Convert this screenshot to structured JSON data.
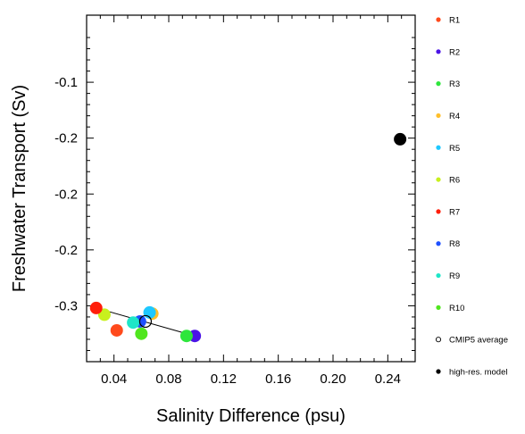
{
  "chart_data": {
    "type": "scatter",
    "xlabel": "Salinity Difference (psu)",
    "ylabel": "Freshwater Transport (Sv)",
    "xlim": [
      0.02,
      0.26
    ],
    "ylim": [
      -0.35,
      -0.04
    ],
    "x_ticks": [
      {
        "value": 0.04,
        "label": "0.04"
      },
      {
        "value": 0.08,
        "label": "0.08"
      },
      {
        "value": 0.12,
        "label": "0.12"
      },
      {
        "value": 0.16,
        "label": "0.16"
      },
      {
        "value": 0.2,
        "label": "0.20"
      },
      {
        "value": 0.24,
        "label": "0.24"
      }
    ],
    "y_ticks": [
      {
        "value": -0.1,
        "label": "-0.1"
      },
      {
        "value": -0.15,
        "label": "-0.2"
      },
      {
        "value": -0.2,
        "label": "-0.2"
      },
      {
        "value": -0.25,
        "label": "-0.2"
      },
      {
        "value": -0.3,
        "label": "-0.3"
      }
    ],
    "series": [
      {
        "name": "R1",
        "color": "#ff4a1c",
        "x": 0.042,
        "y": -0.322
      },
      {
        "name": "R2",
        "color": "#4b14e6",
        "x": 0.099,
        "y": -0.327
      },
      {
        "name": "R3",
        "color": "#2ee63c",
        "x": 0.093,
        "y": -0.327
      },
      {
        "name": "R4",
        "color": "#ffbf2a",
        "x": 0.068,
        "y": -0.307
      },
      {
        "name": "R5",
        "color": "#1ec8ff",
        "x": 0.066,
        "y": -0.306
      },
      {
        "name": "R6",
        "color": "#c8f01e",
        "x": 0.033,
        "y": -0.308
      },
      {
        "name": "R7",
        "color": "#ff1e0a",
        "x": 0.027,
        "y": -0.302
      },
      {
        "name": "R8",
        "color": "#1e50ff",
        "x": 0.059,
        "y": -0.314
      },
      {
        "name": "R9",
        "color": "#1ee6c8",
        "x": 0.054,
        "y": -0.315
      },
      {
        "name": "R10",
        "color": "#50e61e",
        "x": 0.06,
        "y": -0.325
      },
      {
        "name": "CMIP5 average",
        "color": "#000000",
        "x": 0.063,
        "y": -0.314,
        "hollow": true
      },
      {
        "name": "high-res. model",
        "color": "#000000",
        "x": 0.249,
        "y": -0.151
      }
    ],
    "regression_line": {
      "x": [
        0.027,
        0.099
      ],
      "y": [
        -0.302,
        -0.327
      ]
    },
    "legend": "right"
  }
}
